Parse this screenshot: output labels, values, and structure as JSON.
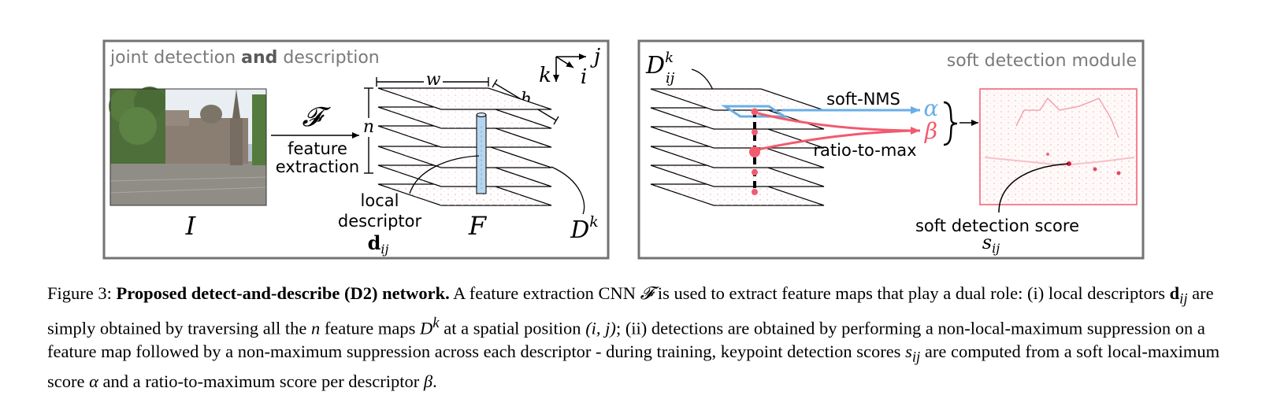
{
  "left_panel": {
    "title_pre": "joint detection ",
    "title_bold": "and",
    "title_post": " description",
    "image_label": "I",
    "func_label": "𝓕",
    "feature_label": "feature",
    "extraction_label": "extraction",
    "n_label": "n",
    "w_label": "w",
    "h_label": "h",
    "axis_k": "k",
    "axis_i": "i",
    "axis_j": "j",
    "local_label": "local",
    "descriptor_label": "descriptor",
    "d_label": "d",
    "d_sub": "ij",
    "F_label": "F",
    "Dk_base": "D",
    "Dk_sup": "k"
  },
  "right_panel": {
    "title": "soft detection module",
    "D_base": "D",
    "D_sup": "k",
    "D_sub": "ij",
    "soft_nms": "soft-NMS",
    "ratio_to_max": "ratio-to-max",
    "alpha": "α",
    "beta": "β",
    "score_label": "soft detection score",
    "s_base": "s",
    "s_sub": "ij"
  },
  "colors": {
    "frame": "#737373",
    "alpha_blue": "#6aaee6",
    "beta_red": "#f25a6e",
    "title_gray": "#7a7a7a"
  },
  "caption": {
    "figure_label": "Figure 3:",
    "bold_title": "Proposed detect-and-describe (D2) network.",
    "p1": " A feature extraction CNN ",
    "F": "𝓕",
    "p2": " is used to extract feature maps that play a dual role: (i) local descriptors ",
    "d": "d",
    "d_sub": "ij",
    "p3": " are simply obtained by traversing all the ",
    "n": "n",
    "p4": " feature maps ",
    "D": "D",
    "D_sup": "k",
    "p5": " at a spatial position ",
    "ij": "(i, j)",
    "p6": "; (ii) detections are obtained by performing a non-local-maximum suppression on a feature map followed by a non-maximum suppression across each descriptor - during training, keypoint detection scores ",
    "s": "s",
    "s_sub": "ij",
    "p7": " are computed from a soft local-maximum score ",
    "alpha": "α",
    "p8": " and a ratio-to-maximum score per descriptor ",
    "beta": "β",
    "p9": "."
  }
}
